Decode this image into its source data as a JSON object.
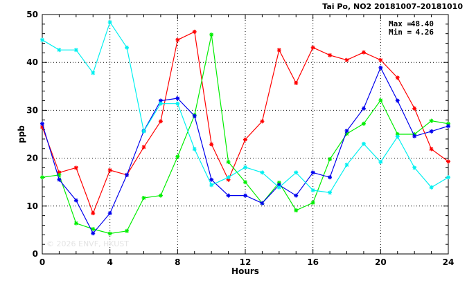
{
  "chart_data": {
    "type": "line",
    "title": "Tai Po, NO2 20181007–20181010",
    "xlabel": "Hours",
    "ylabel": "ppb",
    "xlim": [
      0,
      24
    ],
    "ylim": [
      0,
      50
    ],
    "xticks": [
      0,
      4,
      8,
      12,
      16,
      20,
      24
    ],
    "yticks": [
      0,
      10,
      20,
      30,
      40,
      50
    ],
    "grid": true,
    "stats": {
      "max_label": "Max =",
      "max_value": "48.40",
      "min_label": "Min =",
      "min_value": "4.26"
    },
    "watermark": "© 2026 ENVF, HKUST",
    "x": [
      0,
      1,
      2,
      3,
      4,
      5,
      6,
      7,
      8,
      9,
      10,
      11,
      12,
      13,
      14,
      15,
      16,
      17,
      18,
      19,
      20,
      21,
      22,
      23,
      24
    ],
    "series": [
      {
        "color": "#ff0000",
        "values": [
          26.5,
          17.0,
          18.0,
          8.5,
          17.5,
          16.5,
          22.3,
          27.7,
          44.7,
          46.4,
          22.9,
          15.5,
          23.9,
          27.7,
          42.6,
          35.7,
          43.1,
          41.5,
          40.5,
          42.1,
          40.5,
          36.8,
          30.4,
          21.9,
          19.3
        ]
      },
      {
        "color": "#00ee00",
        "values": [
          16.0,
          16.5,
          6.4,
          5.2,
          4.26,
          4.8,
          11.7,
          12.2,
          20.3,
          29.0,
          45.8,
          19.2,
          15.0,
          10.6,
          14.9,
          9.1,
          10.7,
          19.8,
          25.1,
          27.2,
          32.1,
          25.0,
          25.0,
          27.8,
          27.2
        ]
      },
      {
        "color": "#0000ee",
        "values": [
          27.2,
          15.5,
          11.2,
          4.3,
          8.5,
          16.5,
          25.7,
          32.0,
          32.5,
          28.8,
          15.5,
          12.2,
          12.2,
          10.6,
          14.4,
          12.2,
          17.0,
          16.0,
          25.7,
          30.4,
          38.9,
          32.0,
          24.6,
          25.6,
          26.7
        ]
      },
      {
        "color": "#00f0f0",
        "values": [
          44.7,
          42.6,
          42.6,
          37.8,
          48.4,
          43.1,
          25.6,
          31.4,
          31.4,
          21.9,
          14.4,
          16.0,
          18.1,
          17.0,
          13.9,
          17.0,
          13.3,
          12.8,
          18.6,
          23.0,
          19.2,
          24.5,
          18.0,
          13.9,
          16.0
        ]
      }
    ]
  }
}
